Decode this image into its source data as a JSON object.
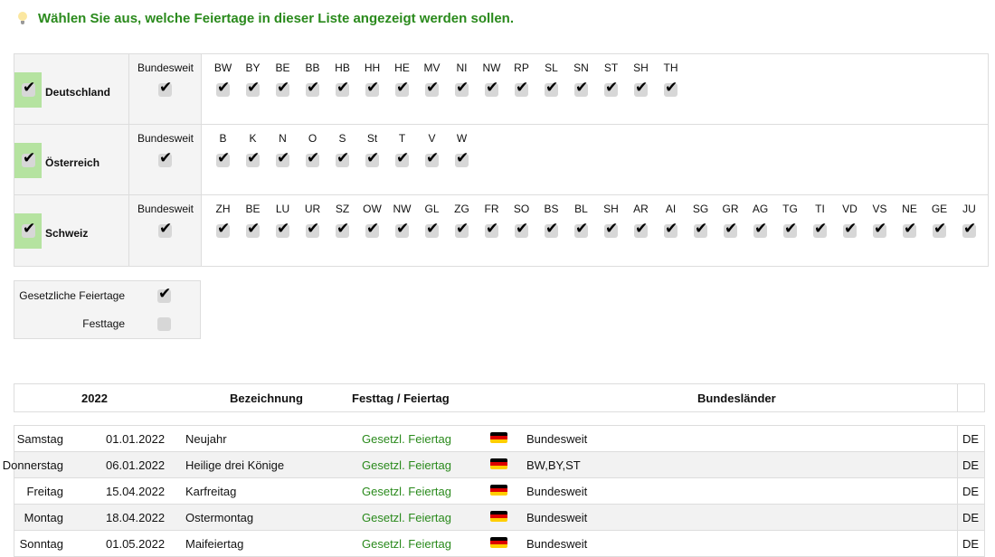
{
  "hint": {
    "icon": "lightbulb-icon",
    "text": "Wählen Sie aus, welche Feiertage in dieser Liste angezeigt werden sollen."
  },
  "countries": [
    {
      "name": "Deutschland",
      "checked": true,
      "bundesweit_label": "Bundesweit",
      "regions": [
        "BW",
        "BY",
        "BE",
        "BB",
        "HB",
        "HH",
        "HE",
        "MV",
        "NI",
        "NW",
        "RP",
        "SL",
        "SN",
        "ST",
        "SH",
        "TH"
      ]
    },
    {
      "name": "Österreich",
      "checked": true,
      "bundesweit_label": "Bundesweit",
      "regions": [
        "B",
        "K",
        "N",
        "O",
        "S",
        "St",
        "T",
        "V",
        "W"
      ]
    },
    {
      "name": "Schweiz",
      "checked": true,
      "bundesweit_label": "Bundesweit",
      "regions": [
        "ZH",
        "BE",
        "LU",
        "UR",
        "SZ",
        "OW",
        "NW",
        "GL",
        "ZG",
        "FR",
        "SO",
        "BS",
        "BL",
        "SH",
        "AR",
        "AI",
        "SG",
        "GR",
        "AG",
        "TG",
        "TI",
        "VD",
        "VS",
        "NE",
        "GE",
        "JU"
      ]
    }
  ],
  "filters": [
    {
      "label": "Gesetzliche Feiertage",
      "checked": true
    },
    {
      "label": "Festtage",
      "checked": false
    }
  ],
  "table": {
    "headers": {
      "year": "2022",
      "name": "Bezeichnung",
      "type": "Festtag / Feiertag",
      "regions": "Bundesländer"
    },
    "rows": [
      {
        "weekday": "Samstag",
        "date": "01.01.2022",
        "name": "Neujahr",
        "type": "Gesetzl. Feiertag",
        "regions": "Bundesweit",
        "country": "DE"
      },
      {
        "weekday": "Donnerstag",
        "date": "06.01.2022",
        "name": "Heilige drei Könige",
        "type": "Gesetzl. Feiertag",
        "regions": "BW,BY,ST",
        "country": "DE"
      },
      {
        "weekday": "Freitag",
        "date": "15.04.2022",
        "name": "Karfreitag",
        "type": "Gesetzl. Feiertag",
        "regions": "Bundesweit",
        "country": "DE"
      },
      {
        "weekday": "Montag",
        "date": "18.04.2022",
        "name": "Ostermontag",
        "type": "Gesetzl. Feiertag",
        "regions": "Bundesweit",
        "country": "DE"
      },
      {
        "weekday": "Sonntag",
        "date": "01.05.2022",
        "name": "Maifeiertag",
        "type": "Gesetzl. Feiertag",
        "regions": "Bundesweit",
        "country": "DE"
      }
    ]
  },
  "colors": {
    "accent_green": "#2a8a1c",
    "check_highlight": "#b5e3a0"
  }
}
